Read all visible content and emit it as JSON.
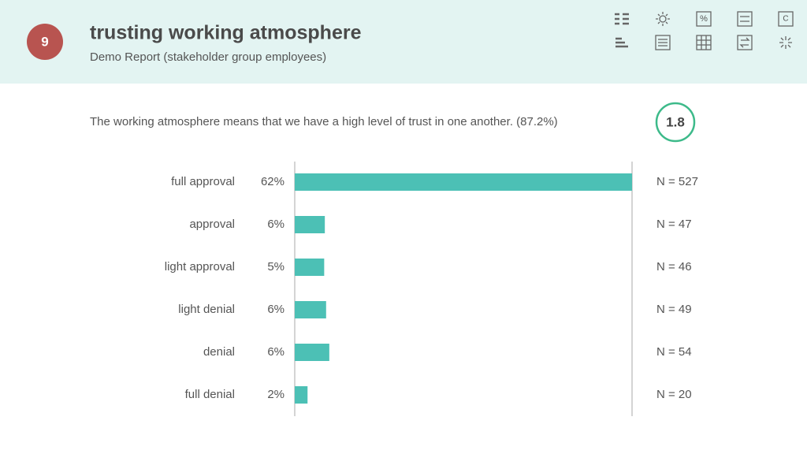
{
  "header": {
    "page_number": "9",
    "title": "trusting working atmosphere",
    "subtitle": "Demo Report (stakeholder group employees)",
    "toolbar": [
      "%",
      "C"
    ]
  },
  "chart_data": {
    "type": "hbar",
    "question": "The working atmosphere means that we have a high level of trust in one another. (87.2%)",
    "score": 1.8,
    "categories": [
      "full approval",
      "approval",
      "light approval",
      "light denial",
      "denial",
      "full denial"
    ],
    "values": [
      527,
      47,
      46,
      49,
      54,
      20
    ],
    "value_labels": [
      "N = 527",
      "N = 47",
      "N = 46",
      "N = 49",
      "N = 54",
      "N = 20"
    ],
    "percentages": [
      62,
      6,
      5,
      6,
      6,
      2
    ],
    "percentage_labels": [
      "62%",
      "6%",
      "5%",
      "6%",
      "6%",
      "2%"
    ],
    "color": "#4cc0b5"
  }
}
